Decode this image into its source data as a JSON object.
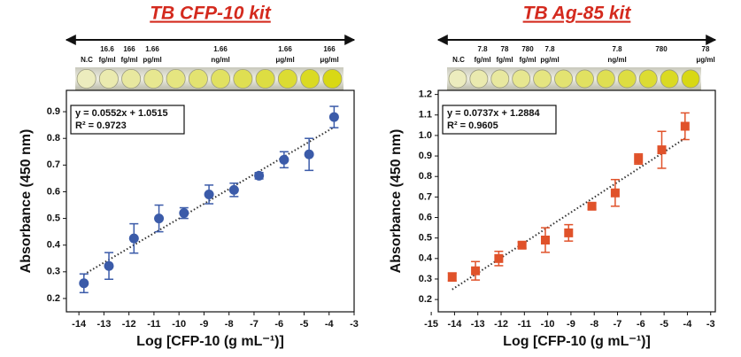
{
  "chart_data": [
    {
      "type": "scatter",
      "title": "TB CFP-10 kit",
      "well_labels": [
        {
          "bottom": "N.C"
        },
        {
          "top": "16.6",
          "bottom": "fg/ml"
        },
        {
          "top": "166",
          "bottom": "fg/ml"
        },
        {
          "top": "1.66",
          "bottom": "pg/ml"
        },
        {
          "top": "1.66",
          "bottom": "ng/ml"
        },
        {
          "top": "1.66",
          "bottom": "μg/ml"
        },
        {
          "top": "166",
          "bottom": "μg/ml"
        }
      ],
      "equation": "y = 0.0552x + 1.0515",
      "r_squared": "R² = 0.9723",
      "x_label": "Log [CFP-10 (g mL⁻¹)]",
      "y_label": "Absorbance (450 nm)",
      "marker": "circle",
      "color": "#3b5ba9",
      "x": [
        -13.8,
        -12.8,
        -11.8,
        -10.8,
        -9.8,
        -8.8,
        -7.8,
        -6.8,
        -5.8,
        -4.8,
        -3.8
      ],
      "values": [
        0.257,
        0.322,
        0.425,
        0.5,
        0.52,
        0.59,
        0.607,
        0.66,
        0.72,
        0.74,
        0.88
      ],
      "errors": [
        0.035,
        0.05,
        0.055,
        0.05,
        0.02,
        0.035,
        0.025,
        0.012,
        0.03,
        0.06,
        0.04
      ],
      "fit": {
        "x": [
          -13.8,
          -3.8
        ],
        "y": [
          0.29,
          0.842
        ]
      },
      "xlim": [
        -14.5,
        -3
      ],
      "xticks": [
        -14,
        -13,
        -12,
        -11,
        -10,
        -9,
        -8,
        -7,
        -6,
        -5,
        -4,
        -3
      ],
      "ylim": [
        0.15,
        0.98
      ],
      "yticks": [
        0.2,
        0.3,
        0.4,
        0.5,
        0.6,
        0.7,
        0.8,
        0.9
      ]
    },
    {
      "type": "scatter",
      "title": "TB Ag-85 kit",
      "well_labels": [
        {
          "bottom": "N.C"
        },
        {
          "top": "7.8",
          "bottom": "fg/ml"
        },
        {
          "top": "78",
          "bottom": "fg/ml"
        },
        {
          "top": "780",
          "bottom": "fg/ml"
        },
        {
          "top": "7.8",
          "bottom": "pg/ml"
        },
        {
          "top": "7.8",
          "bottom": "ng/ml"
        },
        {
          "top": "780"
        },
        {
          "top": "78",
          "bottom": "μg/ml"
        }
      ],
      "equation": "y = 0.0737x + 1.2884",
      "r_squared": "R² = 0.9605",
      "x_label": "Log [CFP-10 (g mL⁻¹)]",
      "y_label": "Absorbance (450 nm)",
      "marker": "square",
      "color": "#e0522a",
      "x": [
        -14.1,
        -13.1,
        -12.1,
        -11.1,
        -10.1,
        -9.1,
        -8.1,
        -7.1,
        -6.1,
        -5.1,
        -4.1
      ],
      "values": [
        0.31,
        0.34,
        0.4,
        0.465,
        0.49,
        0.525,
        0.655,
        0.72,
        0.885,
        0.93,
        1.045
      ],
      "errors": [
        0.02,
        0.045,
        0.035,
        0.015,
        0.06,
        0.04,
        0.015,
        0.065,
        0.025,
        0.09,
        0.065
      ],
      "fit": {
        "x": [
          -14.1,
          -4.1
        ],
        "y": [
          0.249,
          0.986
        ]
      },
      "xlim": [
        -14.7,
        -2.8
      ],
      "xticks": [
        -15,
        -14,
        -13,
        -12,
        -11,
        -10,
        -9,
        -8,
        -7,
        -6,
        -5,
        -4,
        -3
      ],
      "ylim": [
        0.14,
        1.22
      ],
      "yticks": [
        0.2,
        0.3,
        0.4,
        0.5,
        0.6,
        0.7,
        0.8,
        0.9,
        {
          "value": 1,
          "label": "1.0"
        },
        1.1,
        1.2
      ]
    }
  ]
}
